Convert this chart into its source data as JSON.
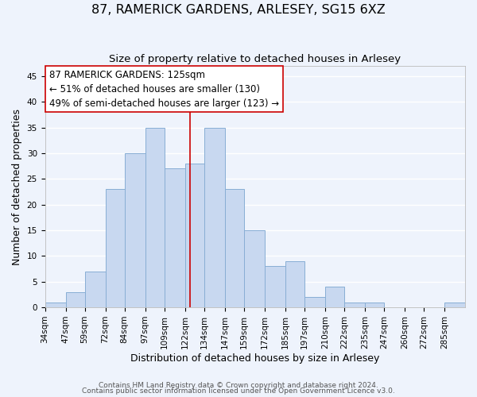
{
  "title": "87, RAMERICK GARDENS, ARLESEY, SG15 6XZ",
  "subtitle": "Size of property relative to detached houses in Arlesey",
  "xlabel": "Distribution of detached houses by size in Arlesey",
  "ylabel": "Number of detached properties",
  "bar_edges": [
    34,
    47,
    59,
    72,
    84,
    97,
    109,
    122,
    134,
    147,
    159,
    172,
    185,
    197,
    210,
    222,
    235,
    247,
    260,
    272,
    285,
    298
  ],
  "bar_heights": [
    1,
    3,
    7,
    23,
    30,
    35,
    27,
    28,
    35,
    23,
    15,
    8,
    9,
    2,
    4,
    1,
    1,
    0,
    0,
    0,
    1
  ],
  "bar_color": "#c8d8f0",
  "bar_edgecolor": "#88aed4",
  "vline_x": 125,
  "vline_color": "#cc0000",
  "ylim": [
    0,
    47
  ],
  "yticks": [
    0,
    5,
    10,
    15,
    20,
    25,
    30,
    35,
    40,
    45
  ],
  "xtick_labels": [
    "34sqm",
    "47sqm",
    "59sqm",
    "72sqm",
    "84sqm",
    "97sqm",
    "109sqm",
    "122sqm",
    "134sqm",
    "147sqm",
    "159sqm",
    "172sqm",
    "185sqm",
    "197sqm",
    "210sqm",
    "222sqm",
    "235sqm",
    "247sqm",
    "260sqm",
    "272sqm",
    "285sqm"
  ],
  "annotation_line1": "87 RAMERICK GARDENS: 125sqm",
  "annotation_line2": "← 51% of detached houses are smaller (130)",
  "annotation_line3": "49% of semi-detached houses are larger (123) →",
  "footer_line1": "Contains HM Land Registry data © Crown copyright and database right 2024.",
  "footer_line2": "Contains public sector information licensed under the Open Government Licence v3.0.",
  "background_color": "#eef3fc",
  "grid_color": "#ffffff",
  "title_fontsize": 11.5,
  "subtitle_fontsize": 9.5,
  "axis_label_fontsize": 9,
  "tick_fontsize": 7.5,
  "annotation_fontsize": 8.5,
  "footer_fontsize": 6.5
}
